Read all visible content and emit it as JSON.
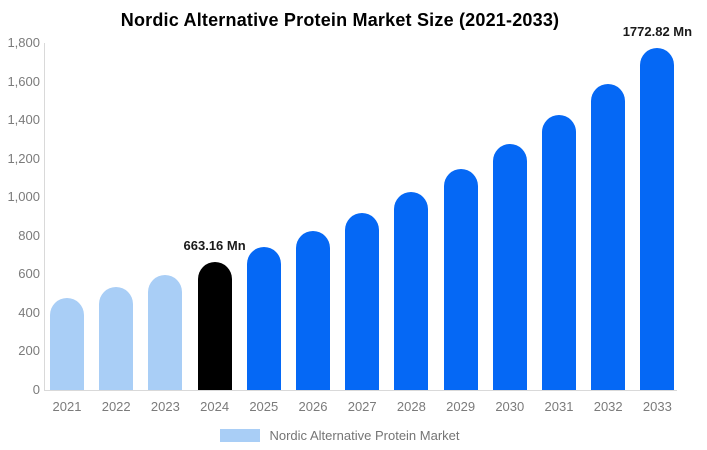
{
  "title": "Nordic Alternative Protein Market Size (2021-2033)",
  "legend": {
    "label": "Nordic Alternative Protein Market"
  },
  "chart_data": {
    "type": "bar",
    "title": "Nordic Alternative Protein Market Size (2021-2033)",
    "unit": "Mn",
    "categories": [
      "2021",
      "2022",
      "2023",
      "2024",
      "2025",
      "2026",
      "2027",
      "2028",
      "2029",
      "2030",
      "2031",
      "2032",
      "2033"
    ],
    "values": [
      477.8,
      533.0,
      594.5,
      663.16,
      739.7,
      825.1,
      920.4,
      1026.7,
      1145.2,
      1277.4,
      1424.9,
      1589.5,
      1772.82
    ],
    "bar_style_keys": [
      "past",
      "past",
      "past",
      "current",
      "forecast",
      "forecast",
      "forecast",
      "forecast",
      "forecast",
      "forecast",
      "forecast",
      "forecast",
      "forecast"
    ],
    "colors": {
      "past": "#a9cef6",
      "current": "#000000",
      "forecast": "#0568f5",
      "axis_line": "#d9d9d9",
      "axis_text": "#7b7b7b",
      "label_text": "#1a1a1a"
    },
    "labeled_points": [
      {
        "category": "2024",
        "label": "663.16 Mn"
      },
      {
        "category": "2033",
        "label": "1772.82 Mn"
      }
    ],
    "xlabel": "",
    "ylabel": "",
    "ylim": [
      0,
      1800
    ],
    "ytick_step": 200,
    "grid": false,
    "legend_entries": [
      "Nordic Alternative Protein Market"
    ],
    "legend_position": "bottom"
  }
}
